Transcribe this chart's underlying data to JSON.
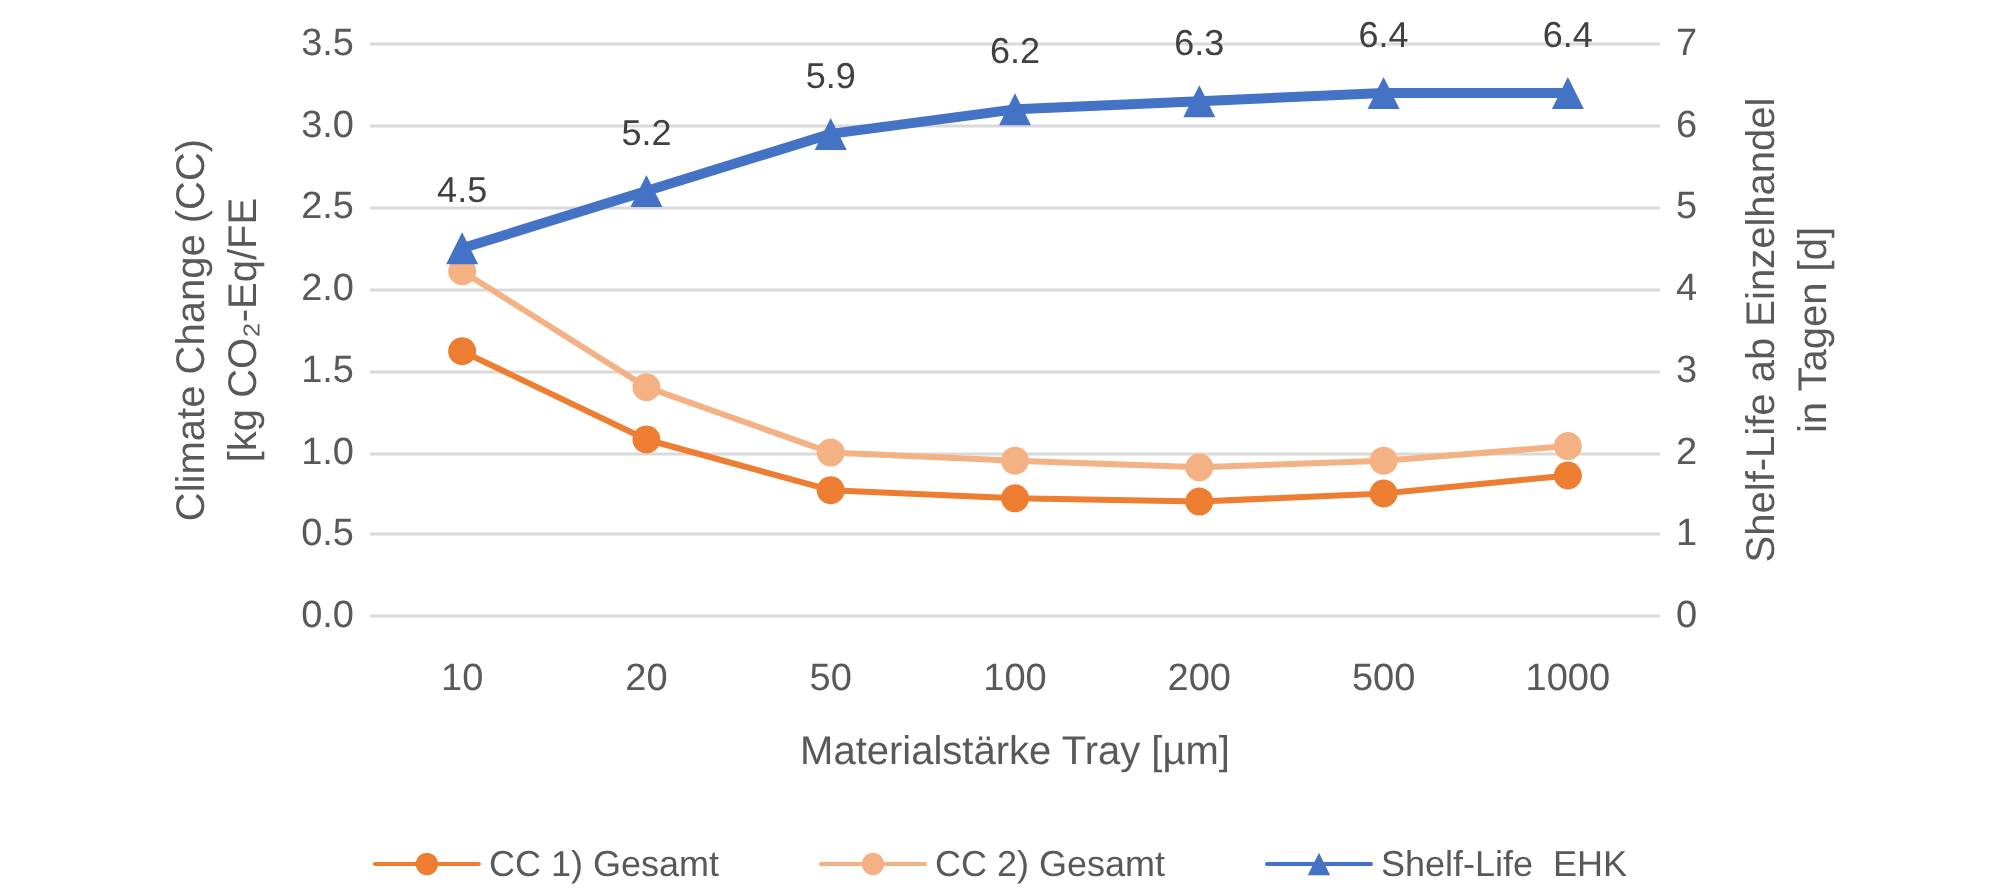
{
  "chart_data": {
    "type": "line",
    "xlabel": "Materialstärke Tray [µm]",
    "ylabel": "Climate Change (CC)\n[kg CO₂-Eq/FE",
    "y2label": "Shelf-Life ab Einzelhandel\nin Tagen [d]",
    "categories": [
      "10",
      "20",
      "50",
      "100",
      "200",
      "500",
      "1000"
    ],
    "series": [
      {
        "name": "CC 1) Gesamt",
        "color": "#ed7d31",
        "marker": "circle",
        "values": [
          1.62,
          1.08,
          0.77,
          0.72,
          0.7,
          0.75,
          0.86
        ]
      },
      {
        "name": "CC 2) Gesamt",
        "color": "#f4b183",
        "marker": "circle",
        "values": [
          2.11,
          1.4,
          1.0,
          0.95,
          0.91,
          0.95,
          1.04
        ]
      },
      {
        "name": "Shelf-Life  EHK",
        "color": "#4472c4",
        "marker": "triangle",
        "axis": "y2",
        "values": [
          4.5,
          5.2,
          5.9,
          6.2,
          6.3,
          6.4,
          6.4
        ],
        "value_labels": [
          "4.5",
          "5.2",
          "5.9",
          "6.2",
          "6.3",
          "6.4",
          "6.4"
        ]
      }
    ],
    "ylim": [
      0,
      3.5
    ],
    "yticks": [
      {
        "value": 0,
        "label": "0.0"
      },
      0.5,
      {
        "value": 1,
        "label": "1.0"
      },
      1.5,
      {
        "value": 2,
        "label": "2.0"
      },
      2.5,
      {
        "value": 3,
        "label": "3.0"
      },
      3.5
    ],
    "y2lim": [
      0,
      7
    ],
    "y2ticks": [
      0,
      1,
      2,
      3,
      4,
      5,
      6,
      7
    ],
    "grid": "y",
    "legend": "bottom"
  }
}
